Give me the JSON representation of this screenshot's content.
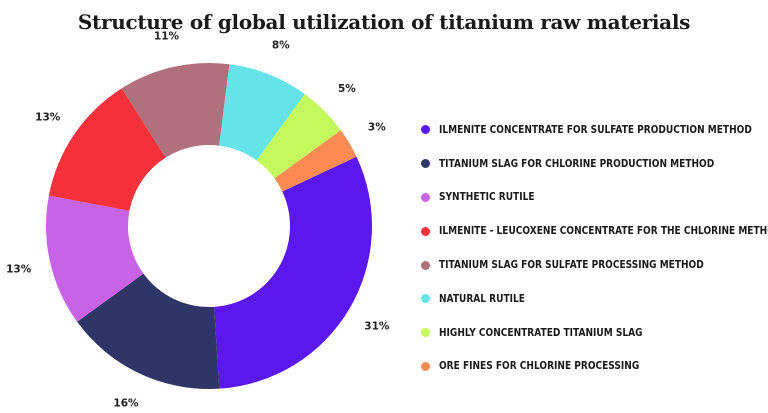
{
  "chart_data": {
    "type": "pie",
    "title": "Structure of global utilization of titanium raw materials",
    "categories": [
      "ILMENITE CONCENTRATE FOR SULFATE PRODUCTION METHOD",
      "TITANIUM SLAG FOR CHLORINE PRODUCTION METHOD",
      "SYNTHETIC RUTILE",
      "ILMENITE - LEUCOXENE CONCENTRATE FOR THE CHLORINE METHOD",
      "TITANIUM SLAG FOR SULFATE PROCESSING METHOD",
      "NATURAL RUTILE",
      "HIGHLY CONCENTRATED TITANIUM SLAG",
      "ORE FINES FOR CHLORINE PROCESSING"
    ],
    "values": [
      31,
      16,
      13,
      13,
      11,
      8,
      5,
      3
    ],
    "value_labels": [
      "31%",
      "16%",
      "13%",
      "13%",
      "11%",
      "8%",
      "5%",
      "3%"
    ],
    "colors": [
      "#5b18ee",
      "#2f3566",
      "#c863e6",
      "#f7313c",
      "#b0707e",
      "#66e3e8",
      "#c4f95e",
      "#fb8b52"
    ],
    "donut": true,
    "legend_position": "right"
  }
}
